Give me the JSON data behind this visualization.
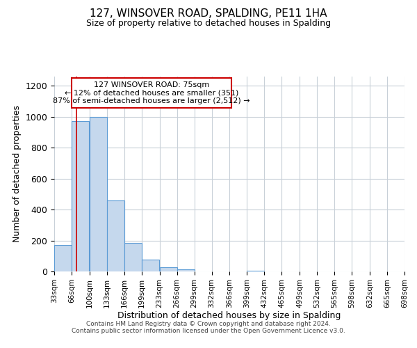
{
  "title": "127, WINSOVER ROAD, SPALDING, PE11 1HA",
  "subtitle": "Size of property relative to detached houses in Spalding",
  "xlabel": "Distribution of detached houses by size in Spalding",
  "ylabel": "Number of detached properties",
  "bin_edges": [
    33,
    66,
    100,
    133,
    166,
    199,
    233,
    266,
    299,
    332,
    366,
    399,
    432,
    465,
    499,
    532,
    565,
    598,
    632,
    665,
    698
  ],
  "bin_labels": [
    "33sqm",
    "66sqm",
    "100sqm",
    "133sqm",
    "166sqm",
    "199sqm",
    "233sqm",
    "266sqm",
    "299sqm",
    "332sqm",
    "366sqm",
    "399sqm",
    "432sqm",
    "465sqm",
    "499sqm",
    "532sqm",
    "565sqm",
    "598sqm",
    "632sqm",
    "665sqm",
    "698sqm"
  ],
  "bar_heights": [
    170,
    970,
    1000,
    460,
    185,
    75,
    25,
    15,
    0,
    0,
    0,
    5,
    0,
    0,
    0,
    0,
    0,
    0,
    0,
    0
  ],
  "bar_color": "#c5d8ed",
  "bar_edge_color": "#5b9bd5",
  "property_line_x": 75,
  "property_line_color": "#cc0000",
  "annotation_line1": "127 WINSOVER ROAD: 75sqm",
  "annotation_line2": "← 12% of detached houses are smaller (351)",
  "annotation_line3": "87% of semi-detached houses are larger (2,512) →",
  "ylim": [
    0,
    1260
  ],
  "yticks": [
    0,
    200,
    400,
    600,
    800,
    1000,
    1200
  ],
  "grid_color": "#c8d0d8",
  "background_color": "#ffffff",
  "footer_line1": "Contains HM Land Registry data © Crown copyright and database right 2024.",
  "footer_line2": "Contains public sector information licensed under the Open Government Licence v3.0."
}
